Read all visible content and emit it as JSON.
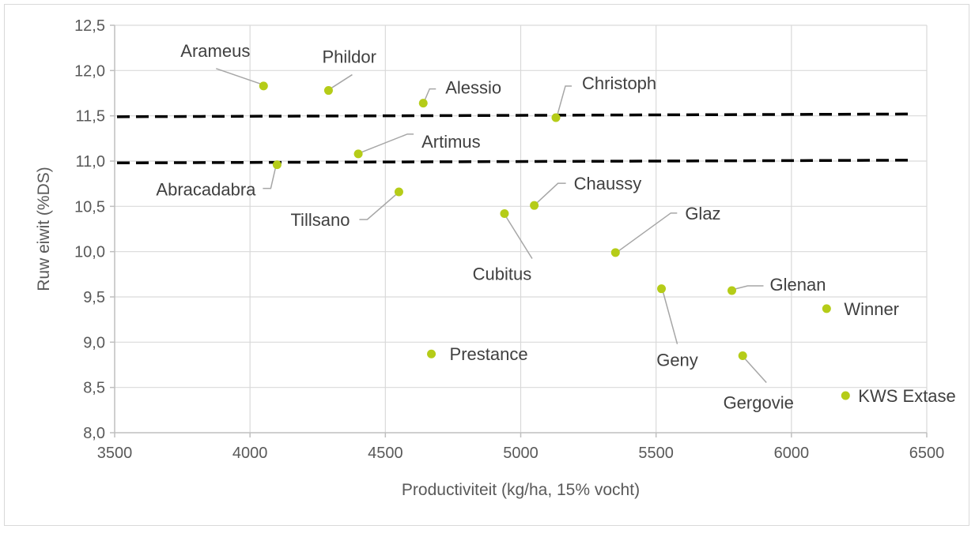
{
  "chart_data": {
    "type": "scatter",
    "title": "",
    "xlabel": "Productiviteit (kg/ha, 15% vocht)",
    "ylabel": "Ruw eiwit (%DS)",
    "xlim": [
      3500,
      6500
    ],
    "ylim": [
      8.0,
      12.5
    ],
    "x_ticks": [
      3500,
      4000,
      4500,
      5000,
      5500,
      6000,
      6500
    ],
    "y_ticks": [
      8.0,
      8.5,
      9.0,
      9.5,
      10.0,
      10.5,
      11.0,
      11.5,
      12.0,
      12.5
    ],
    "x_tick_labels": [
      "3500",
      "4000",
      "4500",
      "5000",
      "5500",
      "6000",
      "6500"
    ],
    "y_tick_labels": [
      "8,0",
      "8,5",
      "9,0",
      "9,5",
      "10,0",
      "10,5",
      "11,0",
      "11,5",
      "12,0",
      "12,5"
    ],
    "grid": true,
    "marker_color": "#b5cc18",
    "points": [
      {
        "name": "Arameus",
        "x": 4050,
        "y": 11.83
      },
      {
        "name": "Phildor",
        "x": 4290,
        "y": 11.78
      },
      {
        "name": "Alessio",
        "x": 4640,
        "y": 11.64
      },
      {
        "name": "Christoph",
        "x": 5130,
        "y": 11.48
      },
      {
        "name": "Artimus",
        "x": 4400,
        "y": 11.08
      },
      {
        "name": "Abracadabra",
        "x": 4100,
        "y": 10.96
      },
      {
        "name": "Tillsano",
        "x": 4550,
        "y": 10.66
      },
      {
        "name": "Chaussy",
        "x": 5050,
        "y": 10.51
      },
      {
        "name": "Cubitus",
        "x": 4940,
        "y": 10.42
      },
      {
        "name": "Glaz",
        "x": 5350,
        "y": 9.99
      },
      {
        "name": "Geny",
        "x": 5520,
        "y": 9.59
      },
      {
        "name": "Glenan",
        "x": 5780,
        "y": 9.57
      },
      {
        "name": "Winner",
        "x": 6130,
        "y": 9.37
      },
      {
        "name": "Prestance",
        "x": 4670,
        "y": 8.87
      },
      {
        "name": "Gergovie",
        "x": 5820,
        "y": 8.85
      },
      {
        "name": "KWS Extase",
        "x": 6200,
        "y": 8.41
      }
    ],
    "reference_lines": [
      {
        "name": "upper-threshold",
        "x": [
          3500,
          6450
        ],
        "y": [
          11.49,
          11.52
        ],
        "style": "dashed",
        "color": "#000000"
      },
      {
        "name": "lower-threshold",
        "x": [
          3500,
          6450
        ],
        "y": [
          10.98,
          11.01
        ],
        "style": "dashed",
        "color": "#000000"
      }
    ]
  }
}
